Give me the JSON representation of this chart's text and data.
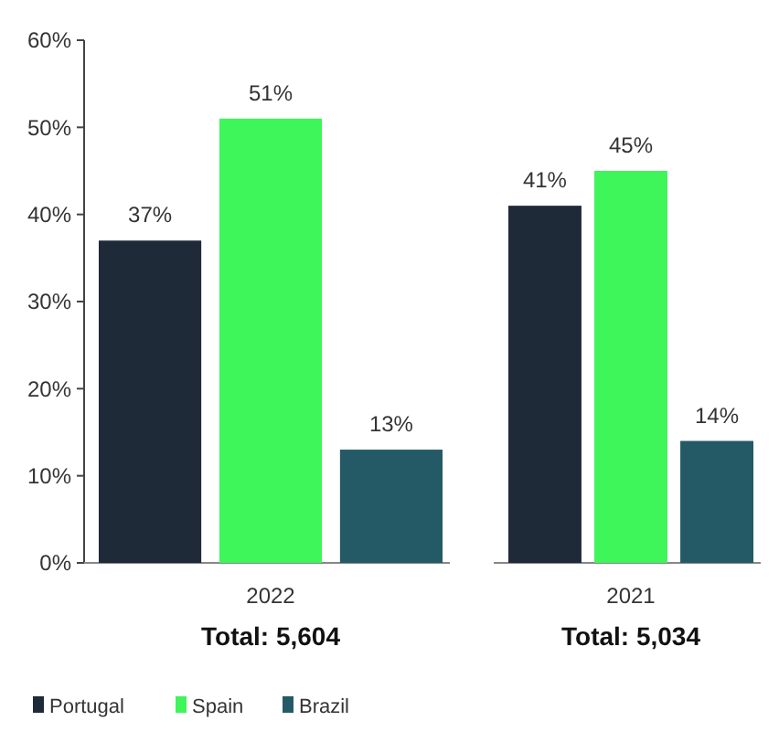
{
  "chart_data": {
    "type": "bar",
    "categories": [
      "2022",
      "2021"
    ],
    "ylim": [
      0,
      60
    ],
    "yticks": [
      {
        "value": 0,
        "label": "0%"
      },
      {
        "value": 10,
        "label": "10%"
      },
      {
        "value": 20,
        "label": "20%"
      },
      {
        "value": 30,
        "label": "30%"
      },
      {
        "value": 40,
        "label": "40%"
      },
      {
        "value": 50,
        "label": "50%"
      },
      {
        "value": 60,
        "label": "60%"
      }
    ],
    "legend": "bottom",
    "annotations": [
      "Total: 5,604",
      "Total: 5,034"
    ],
    "series": [
      {
        "name": "Portugal",
        "color": "#1f2a38",
        "values": [
          37,
          41
        ],
        "value_labels": [
          "37%",
          "41%"
        ]
      },
      {
        "name": "Spain",
        "color": "#3ef55a",
        "values": [
          51,
          45
        ],
        "value_labels": [
          "51%",
          "45%"
        ]
      },
      {
        "name": "Brazil",
        "color": "#245a66",
        "values": [
          13,
          14
        ],
        "value_labels": [
          "13%",
          "14%"
        ]
      }
    ]
  }
}
